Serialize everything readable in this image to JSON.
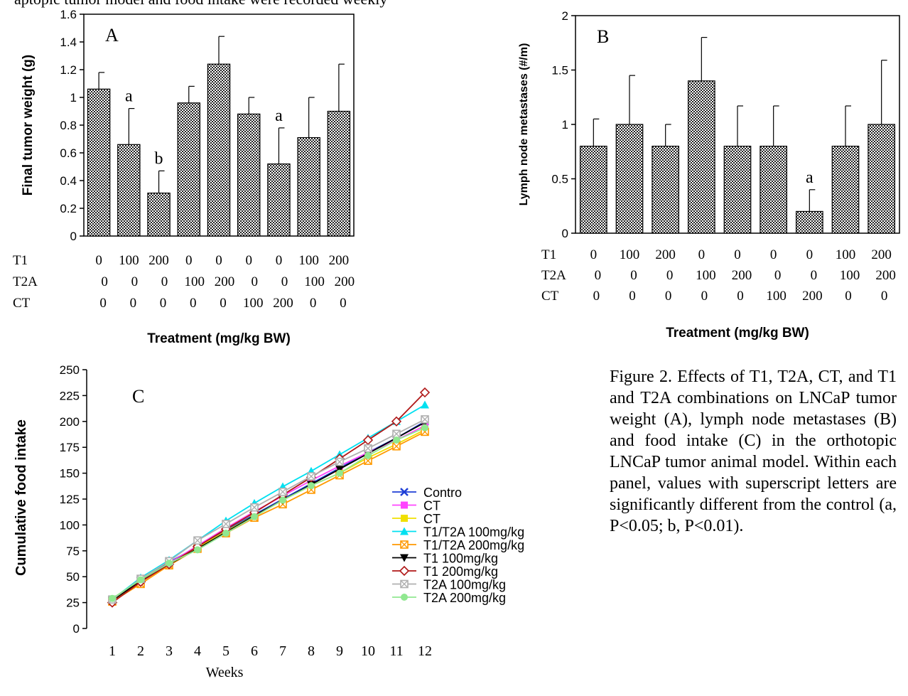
{
  "top_text": "aptopic tumor model and food intake were recorded weekly",
  "caption": "Figure 2. Effects of T1, T2A, CT, and T1 and T2A combinations on LNCaP tumor weight (A), lymph node metastases (B) and food intake (C) in the orthotopic LNCaP tumor animal model. Within each panel, values with superscript letters are significantly different from the control (a, P<0.05; b, P<0.01).",
  "colors": {
    "bar_fill": "#8c8c8c",
    "error_bar": "#000000"
  },
  "chart_data": [
    {
      "type": "bar",
      "panel_label": "A",
      "ylabel": "Final tumor weight (g)",
      "xlabel": "Treatment (mg/kg BW)",
      "ylim": [
        0,
        1.6
      ],
      "yticks": [
        "0",
        "0.2",
        "0.4",
        "0.6",
        "0.8",
        "1",
        "1.2",
        "1.4",
        "1.6"
      ],
      "values": [
        1.06,
        0.66,
        0.31,
        0.96,
        1.24,
        0.88,
        0.52,
        0.71,
        0.9
      ],
      "errors": [
        0.12,
        0.26,
        0.16,
        0.12,
        0.2,
        0.12,
        0.26,
        0.29,
        0.34
      ],
      "sig_labels": [
        "",
        "a",
        "b",
        "",
        "",
        "",
        "a",
        "",
        ""
      ],
      "treatment_rows": [
        {
          "name": "T1",
          "values": [
            "0",
            "100",
            "200",
            "0",
            "0",
            "0",
            "0",
            "100",
            "200"
          ]
        },
        {
          "name": "T2A",
          "values": [
            "0",
            "0",
            "0",
            "100",
            "200",
            "0",
            "0",
            "100",
            "200"
          ]
        },
        {
          "name": "CT",
          "values": [
            "0",
            "0",
            "0",
            "0",
            "0",
            "100",
            "200",
            "0",
            "0"
          ]
        }
      ]
    },
    {
      "type": "bar",
      "panel_label": "B",
      "ylabel": "Lymph node metastases (#/m)",
      "xlabel": "Treatment (mg/kg BW)",
      "ylim": [
        0,
        2
      ],
      "yticks": [
        "0",
        "0.5",
        "1",
        "1.5",
        "2"
      ],
      "values": [
        0.8,
        1.0,
        0.8,
        1.4,
        0.8,
        0.8,
        0.2,
        0.8,
        1.0
      ],
      "errors": [
        0.25,
        0.45,
        0.2,
        0.4,
        0.37,
        0.37,
        0.2,
        0.37,
        0.59
      ],
      "sig_labels": [
        "",
        "",
        "",
        "",
        "",
        "",
        "a",
        "",
        ""
      ],
      "treatment_rows": [
        {
          "name": "T1",
          "values": [
            "0",
            "100",
            "200",
            "0",
            "0",
            "0",
            "0",
            "100",
            "200"
          ]
        },
        {
          "name": "T2A",
          "values": [
            "0",
            "0",
            "0",
            "100",
            "200",
            "0",
            "0",
            "100",
            "200"
          ]
        },
        {
          "name": "CT",
          "values": [
            "0",
            "0",
            "0",
            "0",
            "0",
            "100",
            "200",
            "0",
            "0"
          ]
        }
      ]
    },
    {
      "type": "line",
      "panel_label": "C",
      "ylabel": "Cumulative food intake",
      "xlabel": "Weeks",
      "x": [
        1,
        2,
        3,
        4,
        5,
        6,
        7,
        8,
        9,
        10,
        11,
        12
      ],
      "xticks": [
        "1",
        "2",
        "3",
        "4",
        "5",
        "6",
        "7",
        "8",
        "9",
        "10",
        "11",
        "12"
      ],
      "ylim": [
        0,
        250
      ],
      "yticks": [
        "0",
        "25",
        "50",
        "75",
        "100",
        "125",
        "150",
        "175",
        "200",
        "225",
        "250"
      ],
      "legend_position": "right",
      "series": [
        {
          "name": "Contro",
          "color": "#1f3fd6",
          "marker": "x",
          "values": [
            28,
            47,
            64,
            79,
            95,
            110,
            125,
            140,
            155,
            170,
            184,
            200
          ]
        },
        {
          "name": "CT",
          "color": "#ff44ff",
          "marker": "square",
          "values": [
            27,
            46,
            63,
            80,
            97,
            113,
            128,
            143,
            157,
            170,
            182,
            196
          ]
        },
        {
          "name": "CT",
          "color": "#f0e000",
          "marker": "square",
          "values": [
            27,
            45,
            62,
            78,
            94,
            109,
            124,
            138,
            150,
            165,
            178,
            192
          ]
        },
        {
          "name": "T1/T2A 100mg/kg",
          "color": "#00e0f0",
          "marker": "triangle",
          "values": [
            28,
            49,
            66,
            85,
            104,
            121,
            137,
            152,
            168,
            184,
            200,
            216
          ]
        },
        {
          "name": "T1/T2A 200mg/kg",
          "color": "#ff9900",
          "marker": "boxx",
          "values": [
            26,
            43,
            61,
            77,
            92,
            107,
            120,
            134,
            148,
            162,
            176,
            190
          ]
        },
        {
          "name": "T1 100mg/kg",
          "color": "#000000",
          "marker": "tridown",
          "values": [
            27,
            46,
            62,
            77,
            93,
            109,
            124,
            139,
            154,
            169,
            184,
            199
          ]
        },
        {
          "name": "T1 200mg/kg",
          "color": "#b01818",
          "marker": "diamond",
          "values": [
            25,
            45,
            62,
            79,
            96,
            112,
            129,
            146,
            164,
            182,
            200,
            228
          ]
        },
        {
          "name": "T2A 100mg/kg",
          "color": "#b0b0b0",
          "marker": "boxx",
          "values": [
            28,
            48,
            65,
            85,
            101,
            117,
            132,
            147,
            161,
            174,
            188,
            202
          ]
        },
        {
          "name": "T2A 200mg/kg",
          "color": "#90e890",
          "marker": "circle",
          "values": [
            29,
            47,
            63,
            76,
            92,
            108,
            124,
            138,
            150,
            167,
            182,
            194
          ]
        }
      ]
    }
  ]
}
